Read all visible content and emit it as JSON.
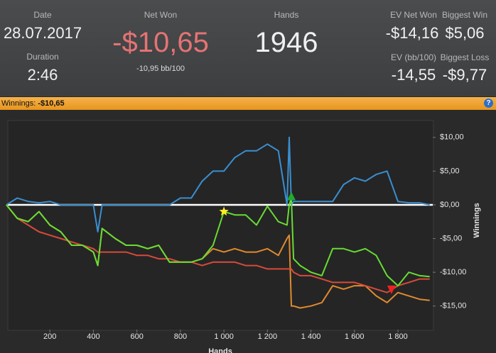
{
  "stats": {
    "date_label": "Date",
    "date": "28.07.2017",
    "duration_label": "Duration",
    "duration": "2:46",
    "net_won_label": "Net Won",
    "net_won": "-$10,65",
    "bb100": "-10,95 bb/100",
    "hands_label": "Hands",
    "hands": "1946",
    "ev_net_won_label": "EV Net Won",
    "ev_net_won": "-$14,16",
    "biggest_win_label": "Biggest Win",
    "biggest_win": "$5,06",
    "ev_bb100_label": "EV (bb/100)",
    "ev_bb100": "-14,55",
    "biggest_loss_label": "Biggest Loss",
    "biggest_loss": "-$9,77"
  },
  "bar": {
    "label": "Winnings:",
    "value": "-$10,65",
    "help": "?"
  },
  "chart_data": {
    "type": "line",
    "xlabel": "Hands",
    "ylabel": "Winnings",
    "xlim": [
      0,
      1960
    ],
    "ylim": [
      -18.5,
      12.5
    ],
    "xticks": [
      200,
      400,
      600,
      800,
      {
        "value": 1000,
        "label": "1 000"
      },
      {
        "value": 1200,
        "label": "1 200"
      },
      {
        "value": 1400,
        "label": "1 400"
      },
      {
        "value": 1600,
        "label": "1 600"
      },
      {
        "value": 1800,
        "label": "1 800"
      }
    ],
    "yticks": [
      {
        "value": 10,
        "label": "$10,00"
      },
      {
        "value": 5,
        "label": "$5,00"
      },
      {
        "value": 0,
        "label": "$0,00"
      },
      {
        "value": -5,
        "label": "-$5,00"
      },
      {
        "value": -10,
        "label": "-$10,00"
      },
      {
        "value": -15,
        "label": "-$15,00"
      }
    ],
    "zero_line": true,
    "x": [
      0,
      50,
      100,
      150,
      200,
      250,
      300,
      350,
      400,
      420,
      440,
      500,
      550,
      600,
      650,
      700,
      750,
      800,
      850,
      900,
      950,
      1000,
      1050,
      1100,
      1150,
      1200,
      1250,
      1290,
      1300,
      1310,
      1320,
      1350,
      1400,
      1450,
      1500,
      1550,
      1600,
      1650,
      1700,
      1750,
      1800,
      1850,
      1900,
      1946
    ],
    "series": [
      {
        "color": "#3a8fd0",
        "values": [
          0,
          1,
          0.5,
          0.3,
          0.5,
          0,
          0,
          0,
          0,
          -4,
          0,
          0,
          0,
          0,
          0,
          0,
          0,
          1,
          1,
          3.5,
          5,
          5,
          7,
          8,
          8,
          9,
          8,
          0,
          10,
          0,
          0.5,
          0.5,
          0.5,
          0.5,
          0.5,
          3,
          4,
          3.5,
          4.5,
          5,
          0.5,
          0.3,
          0.3,
          0
        ]
      },
      {
        "color": "#e08a2e",
        "values": [
          0,
          -2,
          -2.5,
          -1,
          -3,
          -4,
          -6,
          -6,
          -7,
          -9,
          -3.5,
          -5,
          -6,
          -6,
          -6.5,
          -6,
          -8.5,
          -8.5,
          -8.5,
          -8,
          -6.5,
          -7,
          -6.5,
          -7,
          -7,
          -6.5,
          -7.5,
          -5,
          -4.5,
          -15,
          -15,
          -15.3,
          -15,
          -14.5,
          -12,
          -12.5,
          -12,
          -12,
          -13.5,
          -14.5,
          -13,
          -13.5,
          -14,
          -14.16
        ]
      },
      {
        "color": "#d94a3a",
        "values": [
          0,
          -2,
          -3,
          -4,
          -4.5,
          -5,
          -5.5,
          -6,
          -6.5,
          -7,
          -7,
          -7,
          -7,
          -7.5,
          -7.5,
          -8,
          -8,
          -8.5,
          -8.5,
          -9,
          -8.5,
          -8.5,
          -8.5,
          -9,
          -9,
          -9.5,
          -9.5,
          -9.5,
          -9.5,
          -9.5,
          -10,
          -10.5,
          -10.5,
          -11,
          -11.5,
          -11.5,
          -11.5,
          -12,
          -12.5,
          -13,
          -12,
          -11.5,
          -11,
          -11
        ]
      },
      {
        "color": "#66dd33",
        "values": [
          0,
          -2,
          -2.5,
          -1,
          -3,
          -4,
          -6,
          -6,
          -7,
          -9,
          -3.5,
          -5,
          -6,
          -6,
          -6.5,
          -6,
          -8.5,
          -8.5,
          -8.5,
          -8,
          -6,
          -1,
          -1.5,
          -1.5,
          -3,
          -0.2,
          -2.5,
          -3,
          0,
          1,
          -8,
          -9,
          -10,
          -10.5,
          -6.5,
          -6.5,
          -7,
          -6.5,
          -7.5,
          -10.5,
          -12,
          -10,
          -10.5,
          -10.65
        ]
      }
    ],
    "markers": [
      {
        "shape": "star",
        "color": "#ffee22",
        "x": 1000,
        "y": -1
      },
      {
        "shape": "up",
        "color": "#22aa33",
        "x": 1310,
        "y": 1.2
      },
      {
        "shape": "down",
        "color": "#ee2222",
        "x": 1770,
        "y": -12.5
      }
    ]
  }
}
